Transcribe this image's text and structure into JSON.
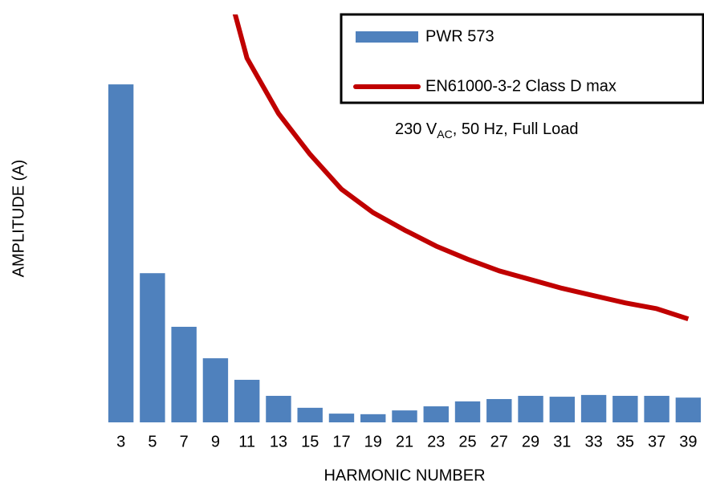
{
  "chart_data": {
    "type": "bar_line",
    "x_label": "HARMONIC NUMBER",
    "y_label": "AMPLITUDE (A)",
    "annotation": {
      "text": "230 V",
      "subscript": "AC",
      "rest": ", 50 Hz, Full Load"
    },
    "categories": [
      "3",
      "5",
      "7",
      "9",
      "11",
      "13",
      "15",
      "17",
      "19",
      "21",
      "23",
      "25",
      "27",
      "29",
      "31",
      "33",
      "35",
      "37",
      "39"
    ],
    "series": [
      {
        "name": "PWR 573",
        "type": "bar",
        "color": "#4f81bd",
        "values": [
          0.116,
          0.0512,
          0.0328,
          0.022,
          0.0146,
          0.0091,
          0.005,
          0.003,
          0.0028,
          0.0041,
          0.0055,
          0.0072,
          0.008,
          0.0091,
          0.0088,
          0.0094,
          0.0091,
          0.0091,
          0.0085
        ]
      },
      {
        "name": "EN61000-3-2 Class D max",
        "type": "line",
        "color": "#c00000",
        "values": [
          null,
          null,
          null,
          0.165,
          0.125,
          0.106,
          0.092,
          0.08,
          0.072,
          0.066,
          0.0605,
          0.056,
          0.052,
          0.049,
          0.046,
          0.0435,
          0.041,
          0.039,
          0.0355
        ]
      }
    ],
    "ylim": [
      0,
      0.14
    ],
    "yticks": [
      {
        "value": 0,
        "label": "0.00"
      },
      0.02,
      0.04,
      0.06,
      0.08,
      {
        "value": 0.1,
        "label": "0.10"
      },
      0.12,
      0.14
    ],
    "grid": true,
    "legend": "top-right"
  }
}
